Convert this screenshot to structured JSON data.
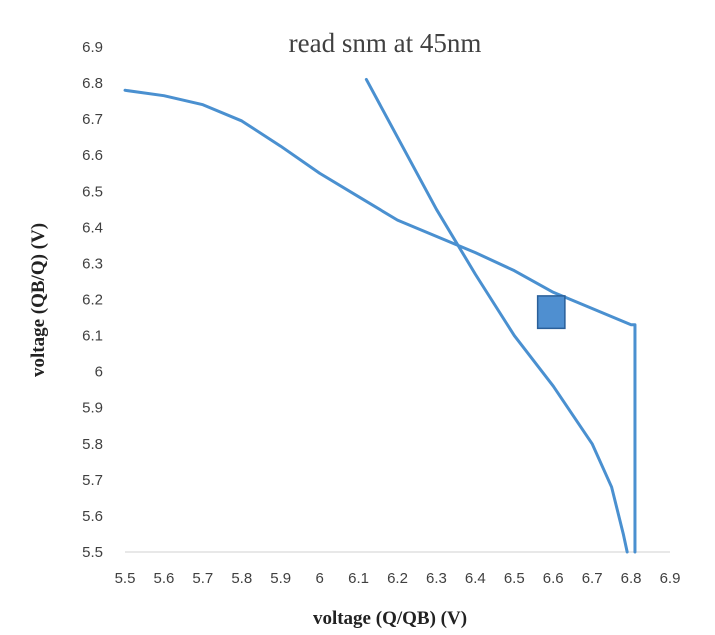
{
  "chart_data": {
    "type": "line",
    "title": "read snm at 45nm",
    "xlabel": "voltage (Q/QB) (V)",
    "ylabel": "voltage (QB/Q) (V)",
    "xlim": [
      5.5,
      6.9
    ],
    "ylim": [
      5.5,
      6.9
    ],
    "x_ticks": [
      "5.5",
      "5.6",
      "5.7",
      "5.8",
      "5.9",
      "6",
      "6.1",
      "6.2",
      "6.3",
      "6.4",
      "6.5",
      "6.6",
      "6.7",
      "6.8",
      "6.9"
    ],
    "y_ticks": [
      "5.5",
      "5.6",
      "5.7",
      "5.8",
      "5.9",
      "6",
      "6.1",
      "6.2",
      "6.3",
      "6.4",
      "6.5",
      "6.6",
      "6.7",
      "6.8",
      "6.9"
    ],
    "grid": false,
    "legend": "none",
    "series": [
      {
        "color": "#4a90d0",
        "points": [
          [
            5.5,
            6.78
          ],
          [
            5.6,
            6.765
          ],
          [
            5.7,
            6.74
          ],
          [
            5.8,
            6.695
          ],
          [
            5.9,
            6.625
          ],
          [
            6.0,
            6.55
          ],
          [
            6.1,
            6.485
          ],
          [
            6.2,
            6.42
          ],
          [
            6.3,
            6.375
          ],
          [
            6.4,
            6.33
          ],
          [
            6.5,
            6.28
          ],
          [
            6.6,
            6.22
          ],
          [
            6.8,
            6.13
          ],
          [
            6.81,
            6.13
          ],
          [
            6.81,
            5.5
          ]
        ]
      },
      {
        "color": "#4a90d0",
        "points": [
          [
            6.12,
            6.81
          ],
          [
            6.2,
            6.65
          ],
          [
            6.3,
            6.45
          ],
          [
            6.4,
            6.27
          ],
          [
            6.5,
            6.1
          ],
          [
            6.6,
            5.96
          ],
          [
            6.7,
            5.8
          ],
          [
            6.75,
            5.68
          ],
          [
            6.78,
            5.55
          ],
          [
            6.79,
            5.5
          ]
        ]
      }
    ],
    "annotations": [
      {
        "type": "square",
        "x0": 6.56,
        "x1": 6.63,
        "y0": 6.12,
        "y1": 6.21,
        "fill": "#4f8fd0",
        "stroke": "#2a5f99"
      }
    ]
  }
}
